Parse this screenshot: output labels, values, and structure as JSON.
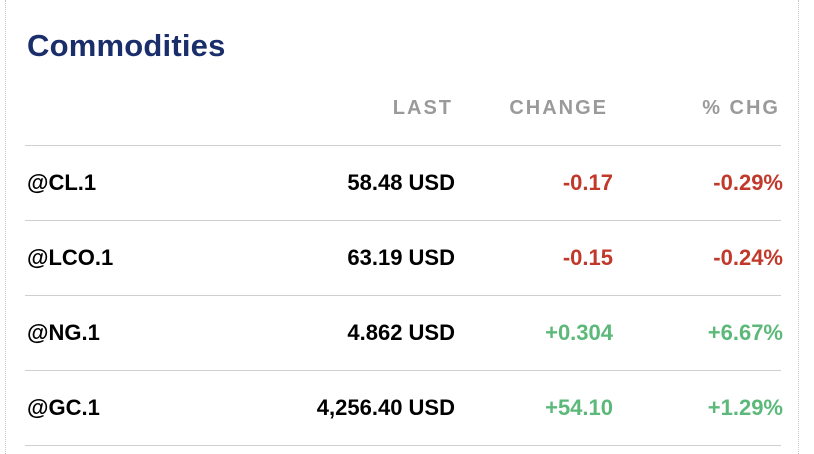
{
  "title": "Commodities",
  "columns": {
    "last": "LAST",
    "change": "CHANGE",
    "pct_chg": "% CHG"
  },
  "colors": {
    "title": "#1a2e6b",
    "negative": "#c0392b",
    "positive": "#5cb97a",
    "header": "#9a9a9a"
  },
  "rows": [
    {
      "symbol": "@CL.1",
      "last": "58.48 USD",
      "change": "-0.17",
      "pct_chg": "-0.29%",
      "direction": "negative"
    },
    {
      "symbol": "@LCO.1",
      "last": "63.19 USD",
      "change": "-0.15",
      "pct_chg": "-0.24%",
      "direction": "negative"
    },
    {
      "symbol": "@NG.1",
      "last": "4.862 USD",
      "change": "+0.304",
      "pct_chg": "+6.67%",
      "direction": "positive"
    },
    {
      "symbol": "@GC.1",
      "last": "4,256.40 USD",
      "change": "+54.10",
      "pct_chg": "+1.29%",
      "direction": "positive"
    }
  ]
}
